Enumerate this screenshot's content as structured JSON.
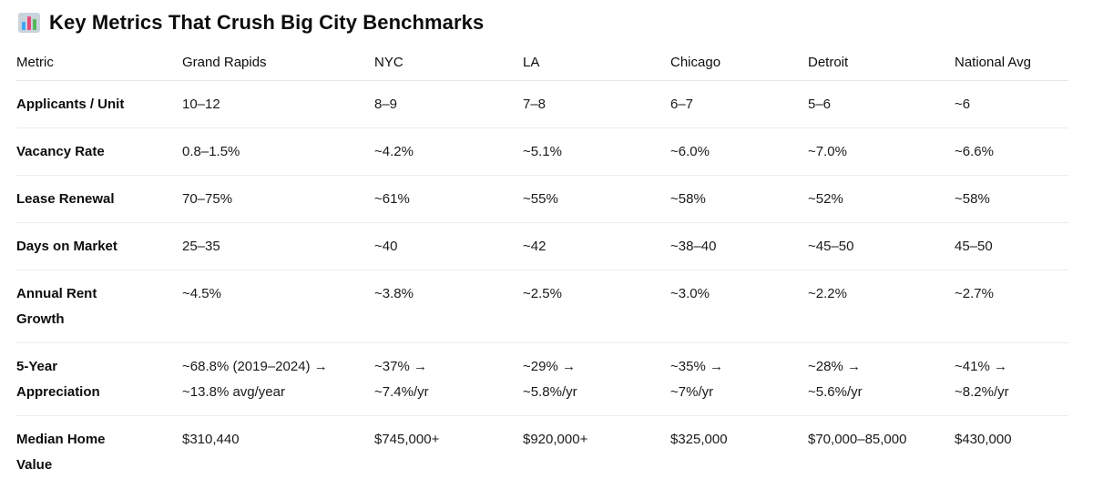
{
  "page": {
    "title": "Key Metrics That Crush Big City Benchmarks",
    "title_icon": "bar-chart-icon"
  },
  "table": {
    "headers": [
      "Metric",
      "Grand Rapids",
      "NYC",
      "LA",
      "Chicago",
      "Detroit",
      "National Avg"
    ],
    "rows": [
      {
        "metric": [
          "Applicants / Unit"
        ],
        "values": [
          [
            "10–12"
          ],
          [
            "8–9"
          ],
          [
            "7–8"
          ],
          [
            "6–7"
          ],
          [
            "5–6"
          ],
          [
            "~6"
          ]
        ]
      },
      {
        "metric": [
          "Vacancy Rate"
        ],
        "values": [
          [
            "0.8–1.5%"
          ],
          [
            "~4.2%"
          ],
          [
            "~5.1%"
          ],
          [
            "~6.0%"
          ],
          [
            "~7.0%"
          ],
          [
            "~6.6%"
          ]
        ]
      },
      {
        "metric": [
          "Lease Renewal"
        ],
        "values": [
          [
            "70–75%"
          ],
          [
            "~61%"
          ],
          [
            "~55%"
          ],
          [
            "~58%"
          ],
          [
            "~52%"
          ],
          [
            "~58%"
          ]
        ]
      },
      {
        "metric": [
          "Days on Market"
        ],
        "values": [
          [
            "25–35"
          ],
          [
            "~40"
          ],
          [
            "~42"
          ],
          [
            "~38–40"
          ],
          [
            "~45–50"
          ],
          [
            "45–50"
          ]
        ]
      },
      {
        "metric": [
          "Annual Rent",
          "Growth"
        ],
        "values": [
          [
            "~4.5%"
          ],
          [
            "~3.8%"
          ],
          [
            "~2.5%"
          ],
          [
            "~3.0%"
          ],
          [
            "~2.2%"
          ],
          [
            "~2.7%"
          ]
        ]
      },
      {
        "metric": [
          "5-Year",
          "Appreciation"
        ],
        "values": [
          [
            "~68.8% (2019–2024) →",
            "~13.8% avg/year"
          ],
          [
            "~37% →",
            "~7.4%/yr"
          ],
          [
            "~29% →",
            "~5.8%/yr"
          ],
          [
            "~35% →",
            "~7%/yr"
          ],
          [
            "~28% →",
            "~5.6%/yr"
          ],
          [
            "~41% →",
            "~8.2%/yr"
          ]
        ]
      },
      {
        "metric": [
          "Median Home",
          "Value"
        ],
        "values": [
          [
            "$310,440"
          ],
          [
            "$745,000+"
          ],
          [
            "$920,000+"
          ],
          [
            "$325,000"
          ],
          [
            "$70,000–85,000"
          ],
          [
            "$430,000"
          ]
        ]
      }
    ]
  }
}
